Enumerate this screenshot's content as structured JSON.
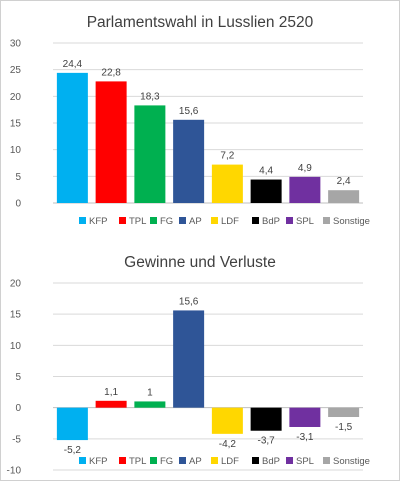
{
  "chart_data": [
    {
      "type": "bar",
      "title": "Parlamentswahl in Lusslien 2520",
      "categories": [
        "KFP",
        "TPL",
        "FG",
        "AP",
        "LDF",
        "BdP",
        "SPL",
        "Sonstige"
      ],
      "values": [
        24.4,
        22.8,
        18.3,
        15.6,
        7.2,
        4.4,
        4.9,
        2.4
      ],
      "data_labels": [
        "24,4",
        "22,8",
        "18,3",
        "15,6",
        "7,2",
        "4,4",
        "4,9",
        "2,4"
      ],
      "colors": [
        "#00b0f0",
        "#ff0000",
        "#00b050",
        "#2f5597",
        "#ffd700",
        "#000000",
        "#7030a0",
        "#a6a6a6"
      ],
      "ylim": [
        0,
        30
      ],
      "yticks": [
        "0",
        "5",
        "10",
        "15",
        "20",
        "25",
        "30"
      ],
      "legend": "bottom",
      "grid": true
    },
    {
      "type": "bar",
      "title": "Gewinne und Verluste",
      "categories": [
        "KFP",
        "TPL",
        "FG",
        "AP",
        "LDF",
        "BdP",
        "SPL",
        "Sonstige"
      ],
      "values": [
        -5.2,
        1.1,
        1,
        15.6,
        -4.2,
        -3.7,
        -3.1,
        -1.5
      ],
      "data_labels": [
        "-5,2",
        "1,1",
        "1",
        "15,6",
        "-4,2",
        "-3,7",
        "-3,1",
        "-1,5"
      ],
      "colors": [
        "#00b0f0",
        "#ff0000",
        "#00b050",
        "#2f5597",
        "#ffd700",
        "#000000",
        "#7030a0",
        "#a6a6a6"
      ],
      "ylim": [
        -10,
        20
      ],
      "yticks": [
        "-10",
        "-5",
        "0",
        "5",
        "10",
        "15",
        "20"
      ],
      "legend": "bottom",
      "grid": true
    }
  ]
}
